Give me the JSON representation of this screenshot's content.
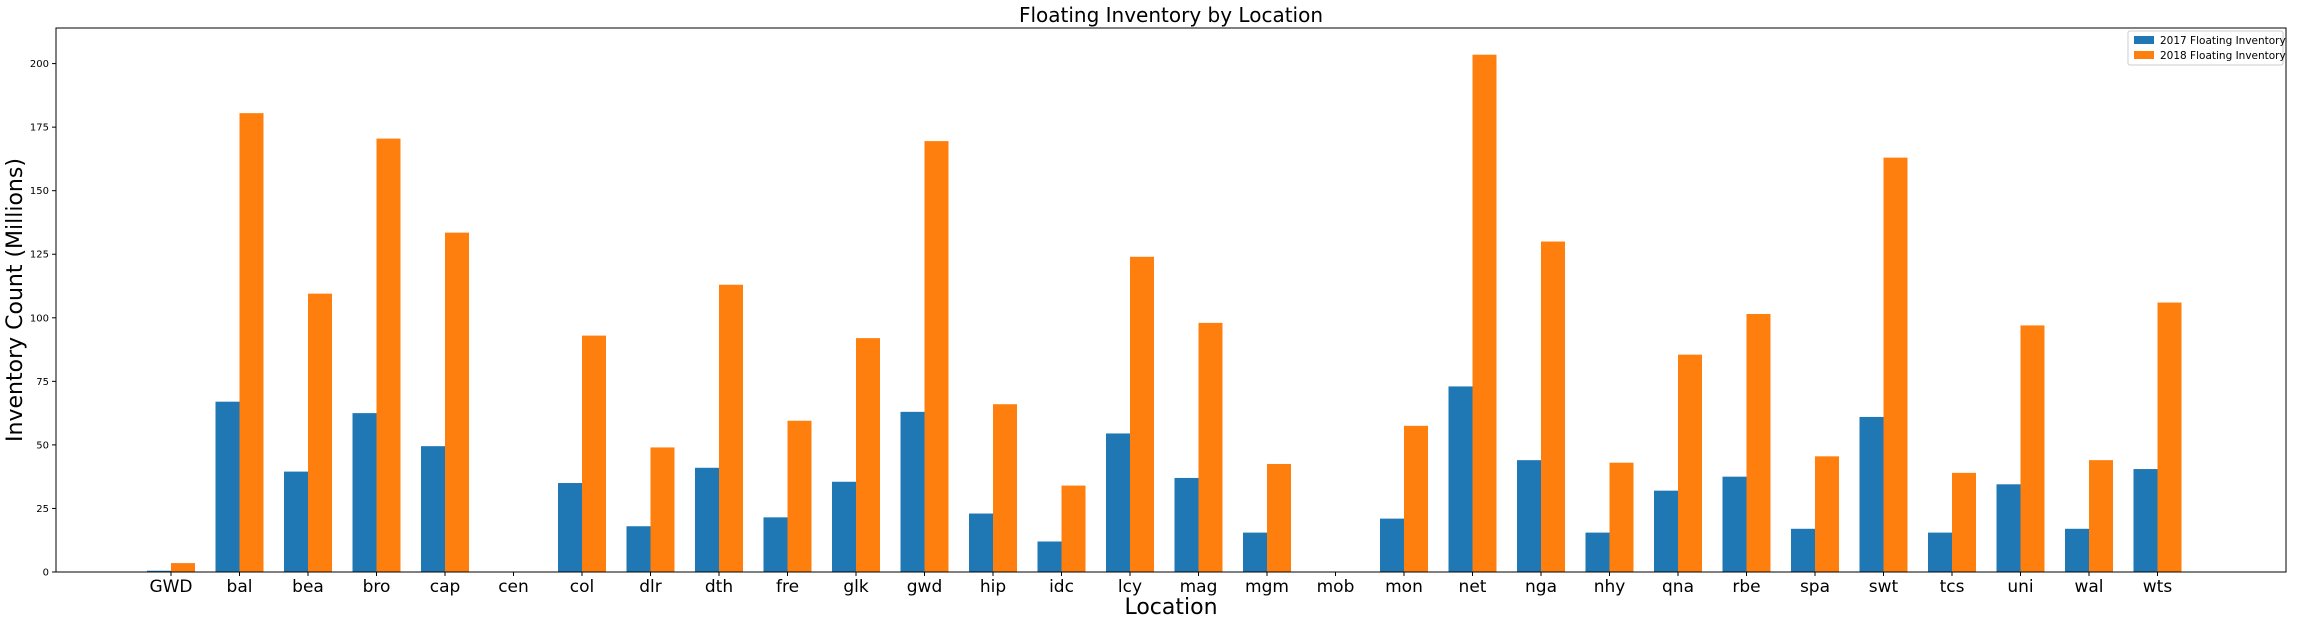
{
  "chart_data": {
    "type": "bar",
    "title": "Floating Inventory by Location",
    "xlabel": "Location",
    "ylabel": "Inventory Count (Millions)",
    "ylim": [
      0,
      214
    ],
    "yticks": [
      0,
      25,
      50,
      75,
      100,
      125,
      150,
      175,
      200
    ],
    "categories": [
      "GWD",
      "bal",
      "bea",
      "bro",
      "cap",
      "cen",
      "col",
      "dlr",
      "dth",
      "fre",
      "glk",
      "gwd",
      "hip",
      "idc",
      "lcy",
      "mag",
      "mgm",
      "mob",
      "mon",
      "net",
      "nga",
      "nhy",
      "qna",
      "rbe",
      "spa",
      "swt",
      "tcs",
      "uni",
      "wal",
      "wts"
    ],
    "series": [
      {
        "name": "2017 Floating Inventory",
        "color": "#1f77b4",
        "values": [
          0.5,
          67,
          39.5,
          62.5,
          49.5,
          0,
          35,
          18,
          41,
          21.5,
          35.5,
          63,
          23,
          12,
          54.5,
          37,
          15.5,
          0,
          21,
          73,
          44,
          15.5,
          32,
          37.5,
          17,
          61,
          15.5,
          34.5,
          17,
          40.5
        ]
      },
      {
        "name": "2018 Floating Inventory",
        "color": "#ff7f0e",
        "values": [
          3.5,
          180.5,
          109.5,
          170.5,
          133.5,
          0,
          93,
          49,
          113,
          59.5,
          92,
          169.5,
          66,
          34,
          124,
          98,
          42.5,
          0,
          57.5,
          203.5,
          130,
          43,
          85.5,
          101.5,
          45.5,
          163,
          39,
          97,
          44,
          106
        ]
      }
    ],
    "grid": false,
    "legend_position": "top-right"
  }
}
